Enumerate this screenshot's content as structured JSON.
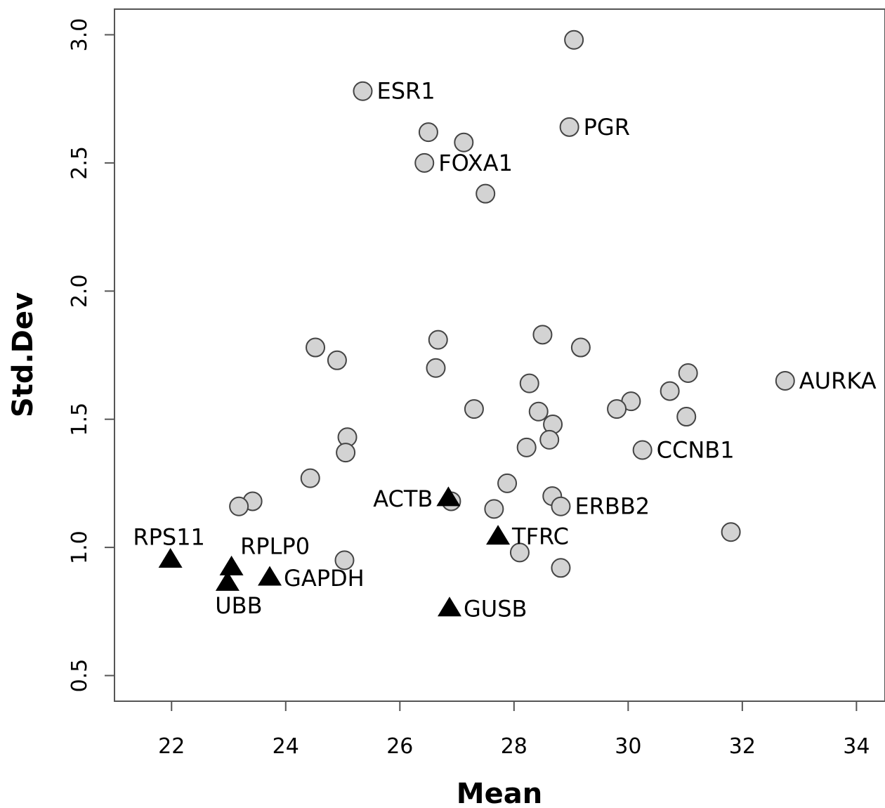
{
  "chart_data": {
    "type": "scatter",
    "title": "",
    "xlabel": "Mean",
    "ylabel": "Std.Dev",
    "xlim": [
      21.0,
      34.5
    ],
    "ylim": [
      0.4,
      3.1
    ],
    "xticks": [
      "22",
      "24",
      "26",
      "28",
      "30",
      "32",
      "34"
    ],
    "yticks": [
      "0.5",
      "1.0",
      "1.5",
      "2.0",
      "2.5",
      "3.0"
    ],
    "grid": false,
    "legend": "none",
    "marker_colors": {
      "circle_fill": "#d3d3d3",
      "triangle_fill": "#000000"
    },
    "series": [
      {
        "marker": "circle",
        "points": [
          {
            "x": 29.05,
            "y": 2.98,
            "label": ""
          },
          {
            "x": 25.35,
            "y": 2.78,
            "label": "ESR1"
          },
          {
            "x": 28.97,
            "y": 2.64,
            "label": "PGR"
          },
          {
            "x": 26.5,
            "y": 2.62,
            "label": ""
          },
          {
            "x": 27.12,
            "y": 2.58,
            "label": ""
          },
          {
            "x": 26.43,
            "y": 2.5,
            "label": "FOXA1"
          },
          {
            "x": 27.5,
            "y": 2.38,
            "label": ""
          },
          {
            "x": 28.5,
            "y": 1.83,
            "label": ""
          },
          {
            "x": 26.67,
            "y": 1.81,
            "label": ""
          },
          {
            "x": 24.52,
            "y": 1.78,
            "label": ""
          },
          {
            "x": 29.17,
            "y": 1.78,
            "label": ""
          },
          {
            "x": 24.9,
            "y": 1.73,
            "label": ""
          },
          {
            "x": 26.63,
            "y": 1.7,
            "label": ""
          },
          {
            "x": 31.05,
            "y": 1.68,
            "label": ""
          },
          {
            "x": 32.75,
            "y": 1.65,
            "label": "AURKA"
          },
          {
            "x": 28.27,
            "y": 1.64,
            "label": ""
          },
          {
            "x": 30.73,
            "y": 1.61,
            "label": ""
          },
          {
            "x": 30.05,
            "y": 1.57,
            "label": ""
          },
          {
            "x": 27.3,
            "y": 1.54,
            "label": ""
          },
          {
            "x": 29.8,
            "y": 1.54,
            "label": ""
          },
          {
            "x": 28.43,
            "y": 1.53,
            "label": ""
          },
          {
            "x": 31.02,
            "y": 1.51,
            "label": ""
          },
          {
            "x": 28.68,
            "y": 1.48,
            "label": ""
          },
          {
            "x": 25.08,
            "y": 1.43,
            "label": ""
          },
          {
            "x": 28.62,
            "y": 1.42,
            "label": ""
          },
          {
            "x": 28.22,
            "y": 1.39,
            "label": ""
          },
          {
            "x": 30.25,
            "y": 1.38,
            "label": "CCNB1"
          },
          {
            "x": 25.05,
            "y": 1.37,
            "label": ""
          },
          {
            "x": 24.43,
            "y": 1.27,
            "label": ""
          },
          {
            "x": 27.88,
            "y": 1.25,
            "label": ""
          },
          {
            "x": 28.67,
            "y": 1.2,
            "label": ""
          },
          {
            "x": 23.42,
            "y": 1.18,
            "label": ""
          },
          {
            "x": 26.9,
            "y": 1.18,
            "label": ""
          },
          {
            "x": 23.18,
            "y": 1.16,
            "label": ""
          },
          {
            "x": 28.82,
            "y": 1.16,
            "label": "ERBB2"
          },
          {
            "x": 27.65,
            "y": 1.15,
            "label": ""
          },
          {
            "x": 31.8,
            "y": 1.06,
            "label": ""
          },
          {
            "x": 28.1,
            "y": 0.98,
            "label": ""
          },
          {
            "x": 25.03,
            "y": 0.95,
            "label": ""
          },
          {
            "x": 28.82,
            "y": 0.92,
            "label": ""
          }
        ]
      },
      {
        "marker": "triangle",
        "points": [
          {
            "x": 26.85,
            "y": 1.19,
            "label": "ACTB"
          },
          {
            "x": 27.72,
            "y": 1.04,
            "label": "TFRC"
          },
          {
            "x": 21.98,
            "y": 0.95,
            "label": "RPS11"
          },
          {
            "x": 23.05,
            "y": 0.92,
            "label": "RPLP0"
          },
          {
            "x": 23.72,
            "y": 0.88,
            "label": "GAPDH"
          },
          {
            "x": 22.98,
            "y": 0.86,
            "label": "UBB"
          },
          {
            "x": 26.87,
            "y": 0.76,
            "label": "GUSB"
          }
        ]
      }
    ]
  }
}
